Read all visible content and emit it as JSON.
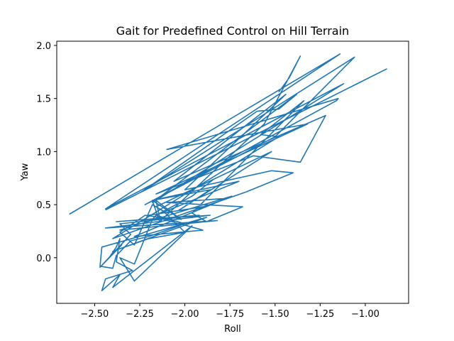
{
  "chart_data": {
    "type": "line",
    "title": "Gait for Predefined Control on Hill Terrain",
    "xlabel": "Roll",
    "ylabel": "Yaw",
    "xlim": [
      -2.71,
      -0.76
    ],
    "ylim": [
      -0.43,
      2.04
    ],
    "xticks": [
      -2.5,
      -2.25,
      -2.0,
      -1.75,
      -1.5,
      -1.25,
      -1.0
    ],
    "xtick_labels": [
      "−2.50",
      "−2.25",
      "−2.00",
      "−1.75",
      "−1.50",
      "−1.25",
      "−1.00"
    ],
    "yticks": [
      0.0,
      0.5,
      1.0,
      1.5,
      2.0
    ],
    "ytick_labels": [
      "0.0",
      "0.5",
      "1.0",
      "1.5",
      "2.0"
    ],
    "grid": false,
    "legend": "none",
    "series": [
      {
        "color": "#1f77b4",
        "x": [
          -2.64,
          -1.14,
          -2.44,
          -1.12,
          -2.18,
          -1.38,
          -1.48,
          -1.6,
          -2.24,
          -1.06,
          -1.5,
          -2.22,
          -1.16,
          -1.15,
          -2.1,
          -1.32,
          -2.16,
          -1.62,
          -1.36,
          -1.22,
          -2.06,
          -1.44,
          -2.0,
          -1.52,
          -1.4,
          -1.66,
          -2.4,
          -1.48,
          -1.58,
          -1.34,
          -1.96,
          -1.88,
          -1.68,
          -2.1,
          -1.76,
          -1.9,
          -2.2,
          -1.9,
          -2.28,
          -1.74,
          -2.36,
          -1.82,
          -2.44,
          -1.86,
          -2.38,
          -1.92,
          -2.36,
          -2.3,
          -2.47,
          -2.35,
          -2.42,
          -2.38,
          -2.36,
          -2.38,
          -2.29,
          -2.44,
          -2.46,
          -2.36,
          -2.4,
          -1.96,
          -2.28,
          -2.36,
          -2.28,
          -2.18,
          -2.16,
          -2.0,
          -2.2,
          -2.3,
          -2.38,
          -2.4,
          -2.47,
          -2.46,
          -1.88,
          -2.4,
          -2.2,
          -2.0,
          -2.12,
          -2.18,
          -2.28,
          -2.36,
          -2.22,
          -2.14,
          -2.16,
          -2.02,
          -2.18,
          -1.7,
          -2.16,
          -1.96,
          -1.84,
          -2.16,
          -1.52,
          -2.04,
          -1.86,
          -2.18,
          -2.14,
          -1.56,
          -1.36,
          -1.42,
          -1.48
        ],
        "y": [
          0.41,
          1.92,
          0.46,
          1.64,
          0.52,
          1.54,
          1.4,
          1.38,
          0.62,
          1.89,
          1.14,
          0.5,
          1.48,
          1.5,
          1.02,
          1.26,
          0.6,
          0.96,
          0.9,
          1.34,
          0.72,
          1.54,
          0.64,
          0.82,
          0.8,
          0.62,
          0.18,
          1.14,
          1.16,
          1.48,
          0.42,
          0.34,
          0.48,
          0.52,
          0.56,
          0.48,
          0.4,
          0.26,
          0.2,
          0.58,
          0.26,
          0.35,
          0.28,
          0.4,
          0.34,
          0.4,
          0.32,
          0.22,
          -0.09,
          0.12,
          0.0,
          0.1,
          0.18,
          -0.04,
          -0.12,
          -0.2,
          -0.31,
          -0.16,
          -0.28,
          0.3,
          -0.22,
          0.0,
          -0.06,
          0.36,
          0.4,
          0.32,
          0.2,
          0.16,
          0.02,
          -0.1,
          -0.08,
          0.1,
          0.38,
          0.06,
          0.18,
          0.24,
          0.44,
          0.5,
          0.12,
          0.24,
          0.4,
          0.38,
          0.54,
          0.36,
          0.54,
          0.72,
          0.4,
          0.58,
          0.74,
          0.48,
          1.0,
          0.44,
          0.64,
          0.54,
          0.34,
          1.26,
          1.9,
          1.7,
          1.56
        ]
      },
      {
        "color": "#1f77b4",
        "x": [
          -0.88,
          -2.44
        ],
        "y": [
          1.78,
          0.45
        ]
      }
    ]
  }
}
